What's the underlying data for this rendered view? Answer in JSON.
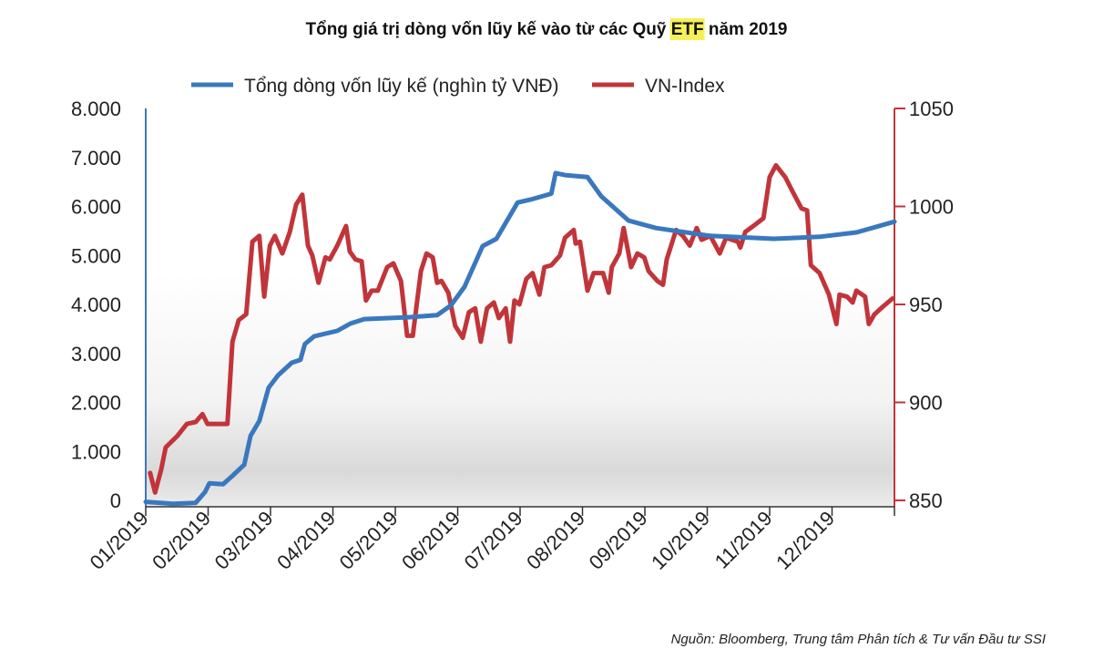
{
  "chart_data": {
    "type": "line",
    "title_parts": [
      "Tổng giá trị dòng vốn lũy kế vào từ các Quỹ ",
      "ETF",
      " năm 2019"
    ],
    "x_unit": "month index from 01/2019 (0) to end of 12/2019 (12)",
    "x_tick_labels": [
      "01/2019",
      "02/2019",
      "03/2019",
      "04/2019",
      "05/2019",
      "06/2019",
      "07/2019",
      "08/2019",
      "09/2019",
      "10/2019",
      "11/2019",
      "12/2019"
    ],
    "xlim": [
      0,
      12
    ],
    "y_left": {
      "ticks": [
        0,
        1000,
        2000,
        3000,
        4000,
        5000,
        6000,
        7000,
        8000
      ],
      "tick_labels": [
        "0",
        "1.000",
        "2.000",
        "3.000",
        "4.000",
        "5.000",
        "6.000",
        "7.000",
        "8.000"
      ],
      "lim": [
        0,
        8000
      ],
      "color": "#3a78be"
    },
    "y_right": {
      "ticks": [
        850,
        900,
        950,
        1000,
        1050
      ],
      "tick_labels": [
        "850",
        "900",
        "950",
        "1000",
        "1050"
      ],
      "lim": [
        850,
        1050
      ],
      "color": "#c1353a"
    },
    "legend_position": "top",
    "grid": false,
    "series": [
      {
        "name": "Tổng dòng vốn lũy kế (nghìn tỷ VNĐ)",
        "axis": "left",
        "color": "#3a78be",
        "points": [
          [
            0,
            -30
          ],
          [
            0.44,
            -70
          ],
          [
            0.8,
            -50
          ],
          [
            0.95,
            170
          ],
          [
            1.02,
            350
          ],
          [
            1.24,
            330
          ],
          [
            1.39,
            500
          ],
          [
            1.58,
            730
          ],
          [
            1.68,
            1320
          ],
          [
            1.82,
            1620
          ],
          [
            1.97,
            2300
          ],
          [
            2.12,
            2550
          ],
          [
            2.34,
            2810
          ],
          [
            2.48,
            2870
          ],
          [
            2.55,
            3190
          ],
          [
            2.7,
            3350
          ],
          [
            3.07,
            3460
          ],
          [
            3.28,
            3610
          ],
          [
            3.5,
            3700
          ],
          [
            4.23,
            3740
          ],
          [
            4.67,
            3780
          ],
          [
            4.89,
            3980
          ],
          [
            5.11,
            4360
          ],
          [
            5.4,
            5190
          ],
          [
            5.62,
            5340
          ],
          [
            5.96,
            6080
          ],
          [
            6.2,
            6150
          ],
          [
            6.5,
            6260
          ],
          [
            6.57,
            6680
          ],
          [
            6.72,
            6640
          ],
          [
            7.08,
            6600
          ],
          [
            7.3,
            6210
          ],
          [
            7.74,
            5710
          ],
          [
            8.18,
            5560
          ],
          [
            9.05,
            5400
          ],
          [
            10.07,
            5340
          ],
          [
            10.8,
            5380
          ],
          [
            11.39,
            5470
          ],
          [
            12.0,
            5690
          ]
        ]
      },
      {
        "name": "VN-Index",
        "axis": "right",
        "color": "#c1353a",
        "points": [
          [
            0.07,
            864
          ],
          [
            0.15,
            854
          ],
          [
            0.25,
            866
          ],
          [
            0.32,
            877
          ],
          [
            0.51,
            883
          ],
          [
            0.66,
            889
          ],
          [
            0.8,
            890
          ],
          [
            0.91,
            894
          ],
          [
            0.99,
            889
          ],
          [
            1.31,
            889
          ],
          [
            1.39,
            931
          ],
          [
            1.49,
            942
          ],
          [
            1.61,
            945
          ],
          [
            1.71,
            982
          ],
          [
            1.82,
            985
          ],
          [
            1.9,
            954
          ],
          [
            1.99,
            980
          ],
          [
            2.07,
            985
          ],
          [
            2.19,
            976
          ],
          [
            2.31,
            987
          ],
          [
            2.41,
            1001
          ],
          [
            2.51,
            1006
          ],
          [
            2.6,
            980
          ],
          [
            2.67,
            975
          ],
          [
            2.77,
            961
          ],
          [
            2.88,
            974
          ],
          [
            2.95,
            973
          ],
          [
            3.07,
            980
          ],
          [
            3.21,
            990
          ],
          [
            3.27,
            977
          ],
          [
            3.36,
            973
          ],
          [
            3.46,
            972
          ],
          [
            3.53,
            952
          ],
          [
            3.62,
            957
          ],
          [
            3.72,
            957
          ],
          [
            3.87,
            969
          ],
          [
            3.97,
            971
          ],
          [
            4.09,
            962
          ],
          [
            4.19,
            934
          ],
          [
            4.28,
            934
          ],
          [
            4.41,
            967
          ],
          [
            4.5,
            976
          ],
          [
            4.6,
            974
          ],
          [
            4.67,
            961
          ],
          [
            4.74,
            962
          ],
          [
            4.85,
            956
          ],
          [
            4.96,
            939
          ],
          [
            5.08,
            933
          ],
          [
            5.18,
            946
          ],
          [
            5.28,
            948
          ],
          [
            5.37,
            931
          ],
          [
            5.47,
            948
          ],
          [
            5.58,
            951
          ],
          [
            5.66,
            943
          ],
          [
            5.77,
            948
          ],
          [
            5.84,
            931
          ],
          [
            5.91,
            952
          ],
          [
            5.99,
            950
          ],
          [
            6.1,
            963
          ],
          [
            6.2,
            966
          ],
          [
            6.31,
            955
          ],
          [
            6.39,
            969
          ],
          [
            6.5,
            970
          ],
          [
            6.64,
            975
          ],
          [
            6.72,
            984
          ],
          [
            6.86,
            988
          ],
          [
            6.89,
            981
          ],
          [
            6.96,
            982
          ],
          [
            7.08,
            957
          ],
          [
            7.18,
            966
          ],
          [
            7.33,
            966
          ],
          [
            7.42,
            956
          ],
          [
            7.47,
            969
          ],
          [
            7.59,
            976
          ],
          [
            7.66,
            989
          ],
          [
            7.78,
            969
          ],
          [
            7.88,
            976
          ],
          [
            7.99,
            974
          ],
          [
            8.06,
            967
          ],
          [
            8.2,
            962
          ],
          [
            8.29,
            960
          ],
          [
            8.35,
            973
          ],
          [
            8.5,
            988
          ],
          [
            8.61,
            985
          ],
          [
            8.72,
            980
          ],
          [
            8.83,
            989
          ],
          [
            8.91,
            983
          ],
          [
            9.05,
            985
          ],
          [
            9.2,
            976
          ],
          [
            9.3,
            984
          ],
          [
            9.49,
            982
          ],
          [
            9.53,
            979
          ],
          [
            9.61,
            987
          ],
          [
            9.78,
            991
          ],
          [
            9.9,
            994
          ],
          [
            10.0,
            1015
          ],
          [
            10.1,
            1021
          ],
          [
            10.25,
            1015
          ],
          [
            10.36,
            1008
          ],
          [
            10.51,
            999
          ],
          [
            10.6,
            998
          ],
          [
            10.66,
            970
          ],
          [
            10.8,
            966
          ],
          [
            10.95,
            955
          ],
          [
            11.07,
            940
          ],
          [
            11.12,
            955
          ],
          [
            11.24,
            954
          ],
          [
            11.33,
            951
          ],
          [
            11.39,
            957
          ],
          [
            11.53,
            954
          ],
          [
            11.59,
            940
          ],
          [
            11.68,
            945
          ],
          [
            11.82,
            949
          ],
          [
            11.97,
            953
          ]
        ]
      }
    ],
    "source": "Nguồn: Bloomberg, Trung tâm Phân tích & Tư vấn Đầu tư SSI"
  }
}
